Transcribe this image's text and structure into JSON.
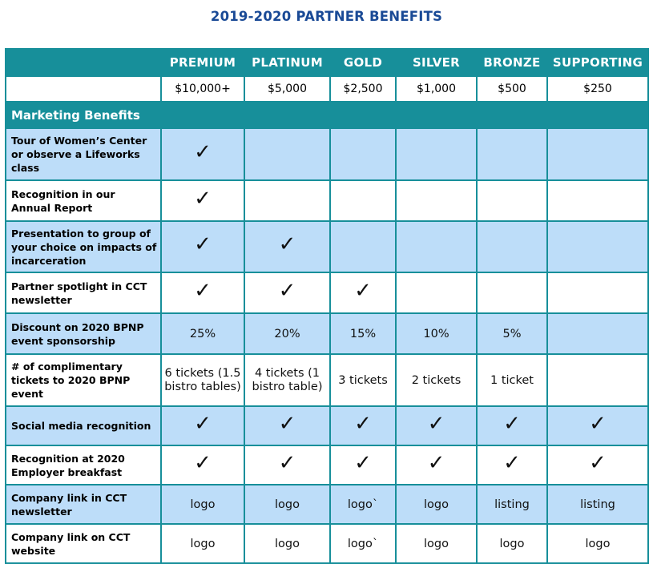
{
  "title": "2019-2020 PARTNER BENEFITS",
  "tiers": [
    "PREMIUM",
    "PLATINUM",
    "GOLD",
    "SILVER",
    "BRONZE",
    "SUPPORTING"
  ],
  "prices": [
    "$10,000+",
    "$5,000",
    "$2,500",
    "$1,000",
    "$500",
    "$250"
  ],
  "section": "Marketing Benefits",
  "check": "✓",
  "icons": {
    "check": "checkmark-icon"
  },
  "colors": {
    "header": "#178f9a",
    "row_alt": "#bdddf9",
    "title": "#1a4a96"
  },
  "rows": [
    {
      "label": "Tour of Women’s Center or observe a Lifeworks class",
      "cells": [
        "✓",
        "",
        "",
        "",
        "",
        ""
      ]
    },
    {
      "label": "Recognition in our Annual Report",
      "cells": [
        "✓",
        "",
        "",
        "",
        "",
        ""
      ]
    },
    {
      "label": "Presentation to group of your choice on impacts of incarceration",
      "cells": [
        "✓",
        "✓",
        "",
        "",
        "",
        ""
      ]
    },
    {
      "label": "Partner spotlight in CCT newsletter",
      "cells": [
        "✓",
        "✓",
        "✓",
        "",
        "",
        ""
      ]
    },
    {
      "label": "Discount on 2020 BPNP event sponsorship",
      "cells": [
        "25%",
        "20%",
        "15%",
        "10%",
        "5%",
        ""
      ]
    },
    {
      "label": "# of complimentary tickets to 2020 BPNP event",
      "cells": [
        "6 tickets (1.5 bistro tables)",
        "4 tickets (1 bistro table)",
        "3 tickets",
        "2 tickets",
        "1 ticket",
        ""
      ]
    },
    {
      "label": "Social media recognition",
      "cells": [
        "✓",
        "✓",
        "✓",
        "✓",
        "✓",
        "✓"
      ]
    },
    {
      "label": "Recognition at 2020 Employer breakfast",
      "cells": [
        "✓",
        "✓",
        "✓",
        "✓",
        "✓",
        "✓"
      ]
    },
    {
      "label": "Company link in CCT newsletter",
      "cells": [
        "logo",
        "logo",
        "logo`",
        "logo",
        "listing",
        "listing"
      ]
    },
    {
      "label": "Company link on CCT website",
      "cells": [
        "logo",
        "logo",
        "logo`",
        "logo",
        "logo",
        "logo"
      ]
    }
  ]
}
